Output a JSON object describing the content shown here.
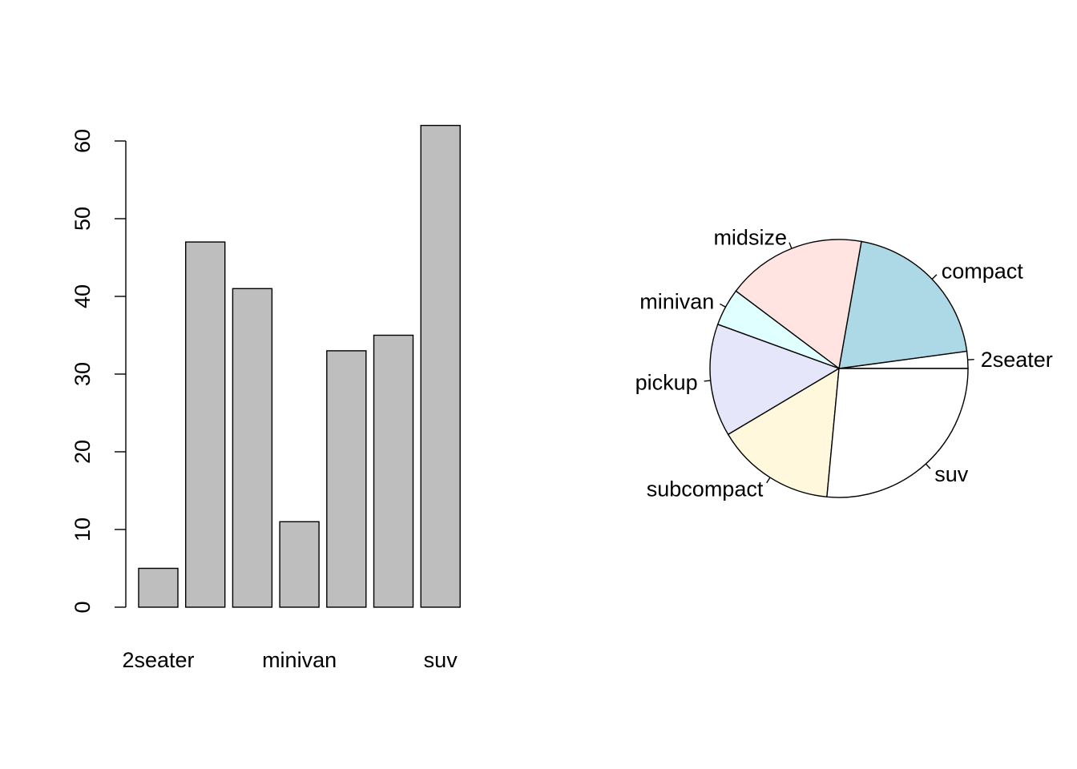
{
  "chart_data": [
    {
      "type": "bar",
      "categories": [
        "2seater",
        "compact",
        "midsize",
        "minivan",
        "pickup",
        "subcompact",
        "suv"
      ],
      "category_labels_shown": [
        "2seater",
        "",
        "",
        "minivan",
        "",
        "",
        "suv"
      ],
      "values": [
        5,
        47,
        41,
        11,
        33,
        35,
        62
      ],
      "ylim": [
        0,
        60
      ],
      "yticks": [
        "0",
        "10",
        "20",
        "30",
        "40",
        "50",
        "60"
      ],
      "title": "",
      "xlabel": "",
      "ylabel": "",
      "bar_color": "#bebebe",
      "grid": false
    },
    {
      "type": "pie",
      "labels": [
        "2seater",
        "compact",
        "midsize",
        "minivan",
        "pickup",
        "subcompact",
        "suv"
      ],
      "values": [
        5,
        47,
        41,
        11,
        33,
        35,
        62
      ],
      "colors": [
        "#ffffff",
        "#add8e6",
        "#ffe4e1",
        "#e0ffff",
        "#e6e6fa",
        "#fff8dc",
        "#ffffff"
      ],
      "title": ""
    }
  ]
}
